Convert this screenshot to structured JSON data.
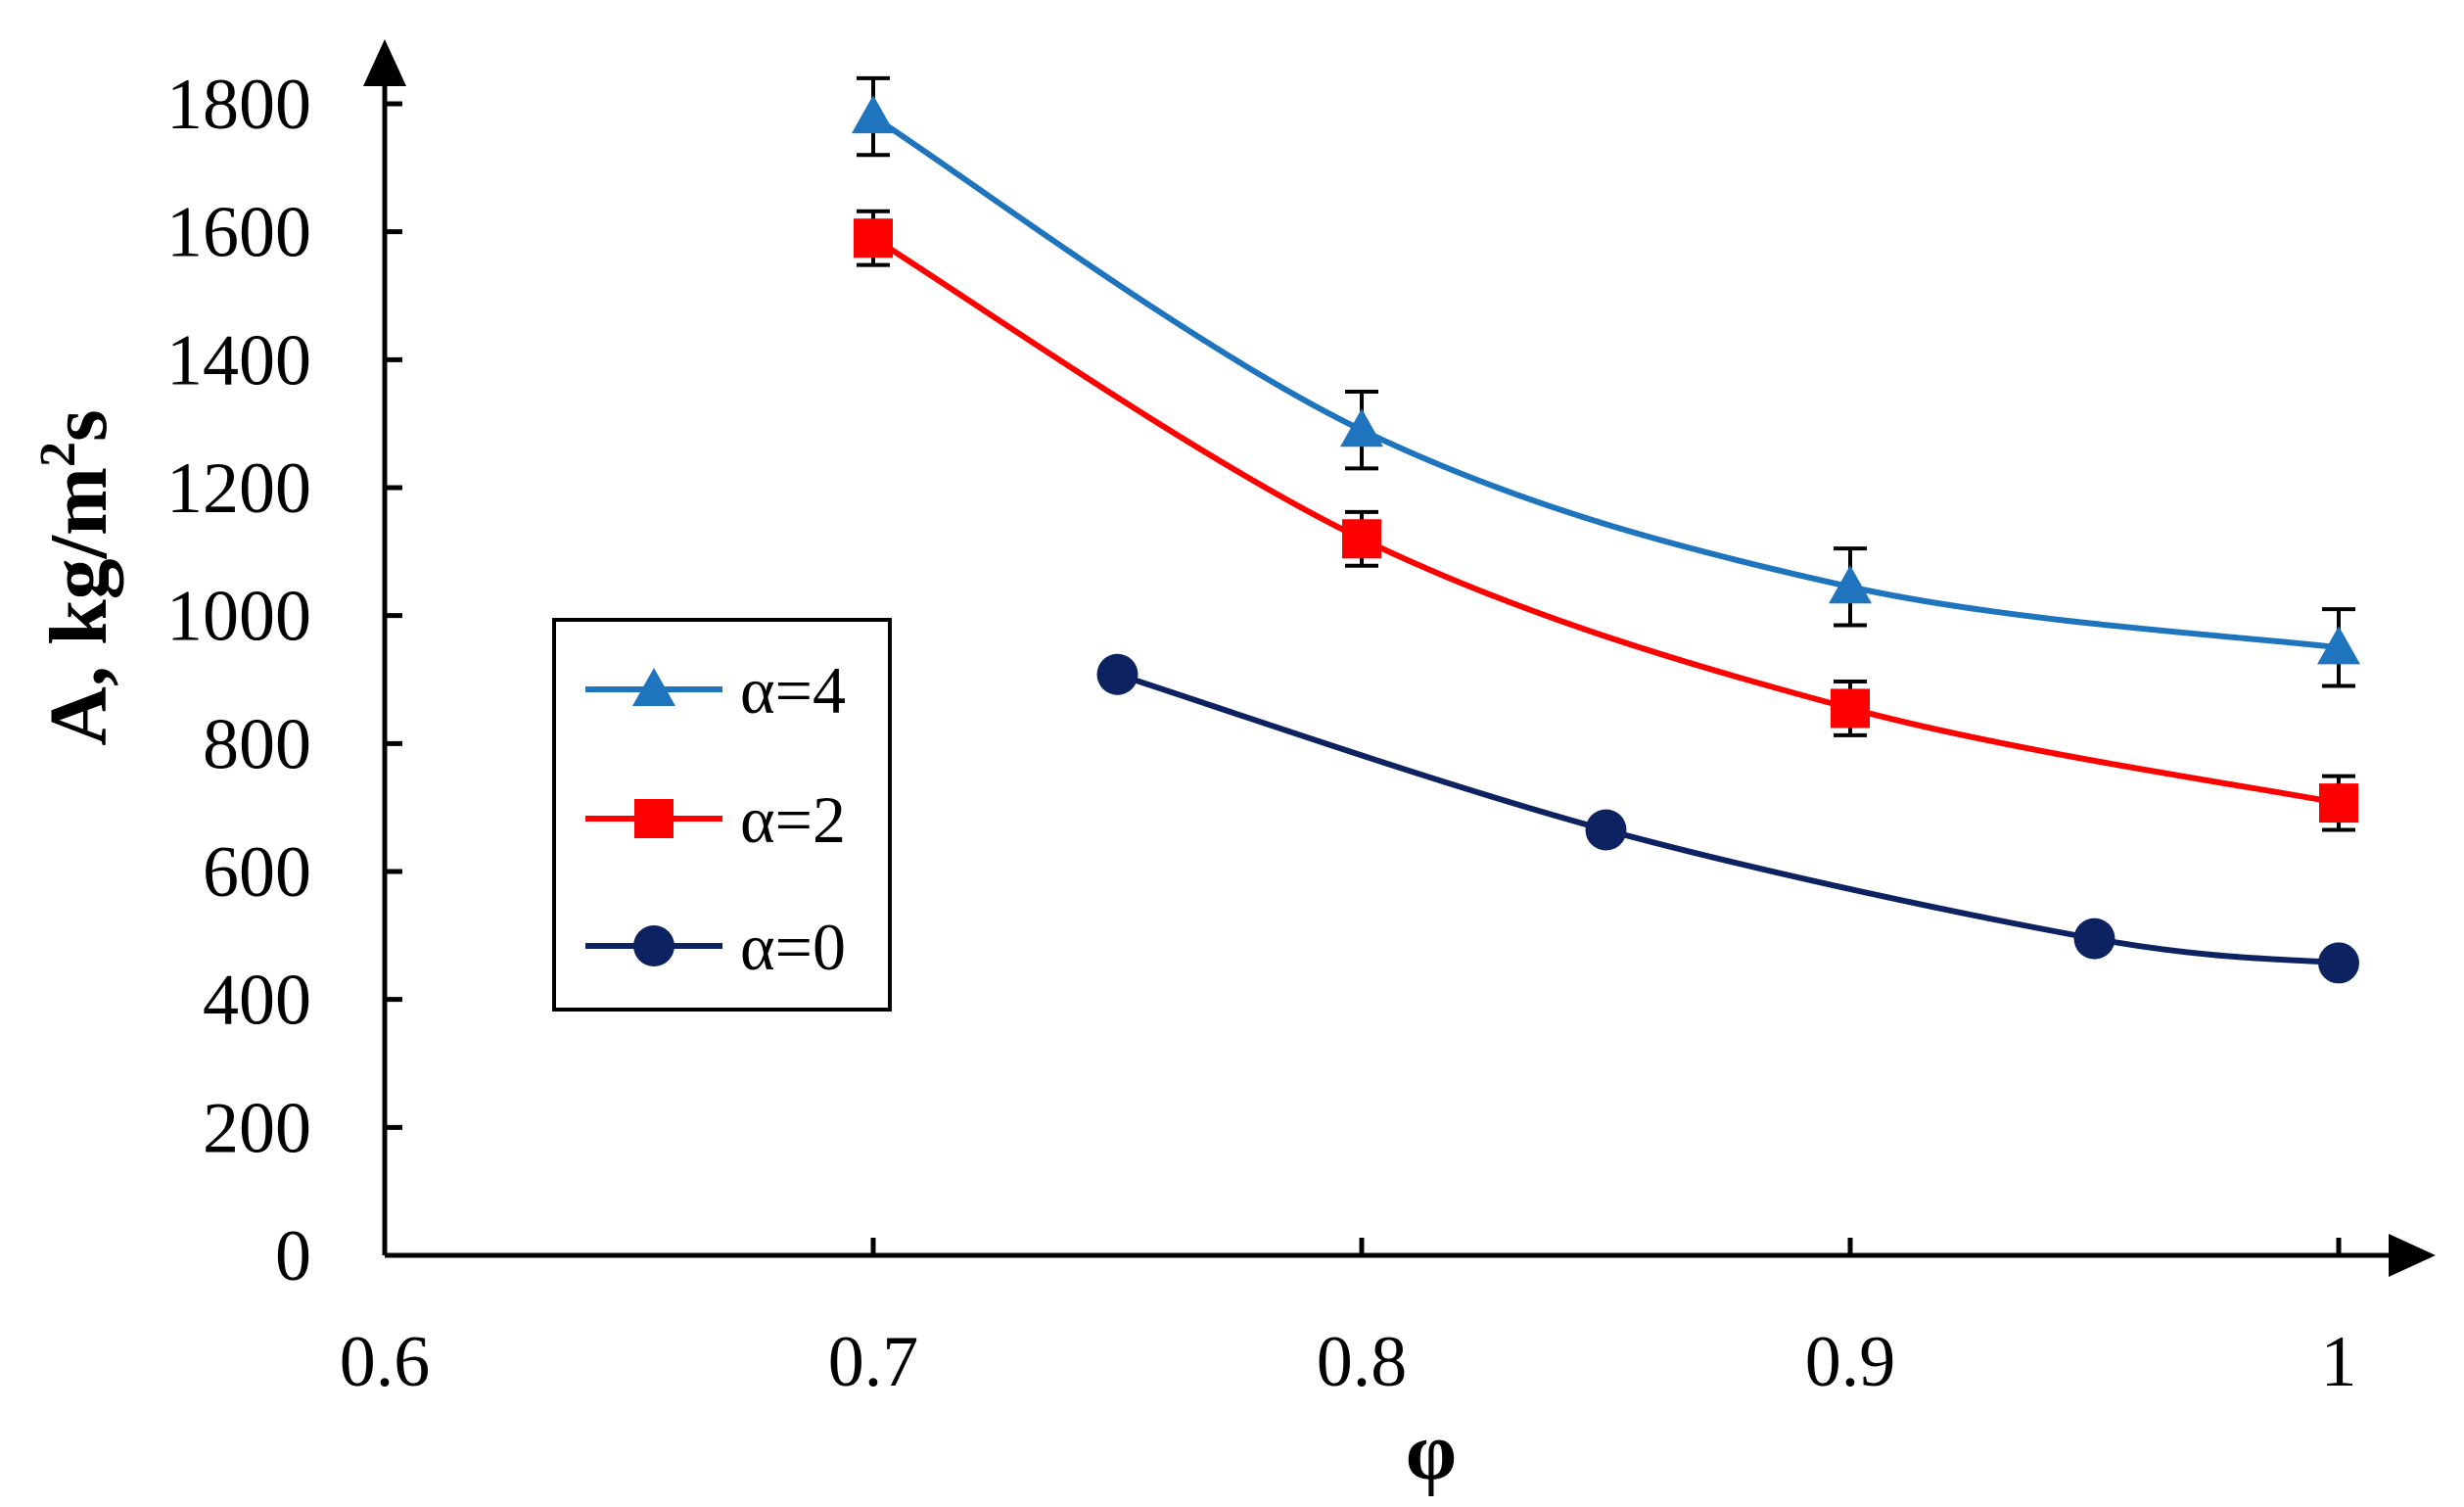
{
  "chart_data": {
    "type": "line",
    "title": "",
    "xlabel": "φ",
    "ylabel": "A, kg/m²s",
    "ylabel_parts": {
      "main": "A, kg/m",
      "sup": "2",
      "tail": "s"
    },
    "xlim": [
      0.6,
      1.0
    ],
    "ylim": [
      0,
      1800
    ],
    "x_ticks": [
      0.6,
      0.7,
      0.8,
      0.9,
      1.0
    ],
    "x_tick_labels": [
      "0.6",
      "0.7",
      "0.8",
      "0.9",
      "1"
    ],
    "y_ticks": [
      0,
      200,
      400,
      600,
      800,
      1000,
      1200,
      1400,
      1600,
      1800
    ],
    "y_tick_labels": [
      "0",
      "200",
      "400",
      "600",
      "800",
      "1000",
      "1200",
      "1400",
      "1600",
      "1800"
    ],
    "grid": false,
    "legend_position": "middle-left",
    "series": [
      {
        "name": "α=4",
        "color": "#1F74BE",
        "marker": "triangle",
        "x": [
          0.7,
          0.8,
          0.9,
          1.0
        ],
        "values": [
          1780,
          1290,
          1045,
          950
        ],
        "error": [
          60,
          60,
          60,
          60
        ]
      },
      {
        "name": "α=2",
        "color": "#FF0000",
        "marker": "square",
        "x": [
          0.7,
          0.8,
          0.9,
          1.0
        ],
        "values": [
          1590,
          1120,
          855,
          707
        ],
        "error": [
          42,
          42,
          42,
          42
        ]
      },
      {
        "name": "α=0",
        "color": "#0D2361",
        "marker": "circle",
        "x": [
          0.75,
          0.85,
          0.95,
          1.0
        ],
        "values": [
          908,
          665,
          495,
          457
        ],
        "error": null
      }
    ]
  }
}
